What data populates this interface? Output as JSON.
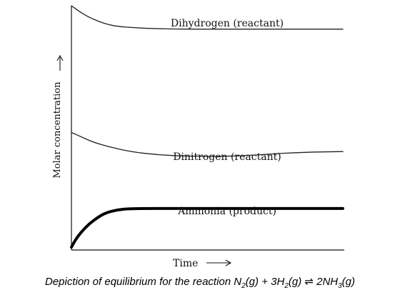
{
  "chart_data": {
    "type": "line",
    "xlabel": "Time",
    "ylabel": "Molar concentration",
    "grid": false,
    "series": [
      {
        "name": "Dihydrogen (reactant)",
        "stroke": "#222222",
        "weight": "thin",
        "points": [
          [
            0,
            1.0
          ],
          [
            0.03,
            0.975
          ],
          [
            0.06,
            0.955
          ],
          [
            0.1,
            0.935
          ],
          [
            0.14,
            0.92
          ],
          [
            0.18,
            0.913
          ],
          [
            0.22,
            0.91
          ],
          [
            0.3,
            0.905
          ],
          [
            0.4,
            0.903
          ],
          [
            0.6,
            0.903
          ],
          [
            0.8,
            0.903
          ],
          [
            1.0,
            0.903
          ]
        ]
      },
      {
        "name": "Dinitrogen (reactant)",
        "stroke": "#222222",
        "weight": "thin",
        "points": [
          [
            0,
            0.475
          ],
          [
            0.04,
            0.455
          ],
          [
            0.08,
            0.435
          ],
          [
            0.14,
            0.415
          ],
          [
            0.22,
            0.395
          ],
          [
            0.32,
            0.382
          ],
          [
            0.42,
            0.377
          ],
          [
            0.52,
            0.375
          ],
          [
            0.62,
            0.378
          ],
          [
            0.72,
            0.385
          ],
          [
            0.85,
            0.393
          ],
          [
            1.0,
            0.396
          ]
        ]
      },
      {
        "name": "Ammonia (product)",
        "stroke": "#000000",
        "weight": "thick",
        "points": [
          [
            0,
            0.0
          ],
          [
            0.02,
            0.04
          ],
          [
            0.05,
            0.08
          ],
          [
            0.08,
            0.11
          ],
          [
            0.12,
            0.14
          ],
          [
            0.17,
            0.155
          ],
          [
            0.22,
            0.16
          ],
          [
            0.4,
            0.16
          ],
          [
            0.6,
            0.16
          ],
          [
            0.8,
            0.16
          ],
          [
            1.0,
            0.16
          ]
        ]
      }
    ]
  },
  "caption": {
    "prefix": "Depiction of equilibrium for the reaction N",
    "sub1": "2",
    "part2": "(g) + 3H",
    "sub2": "2",
    "part3": "(g) ⇌ 2NH",
    "sub3": "3",
    "part4": "(g)"
  }
}
